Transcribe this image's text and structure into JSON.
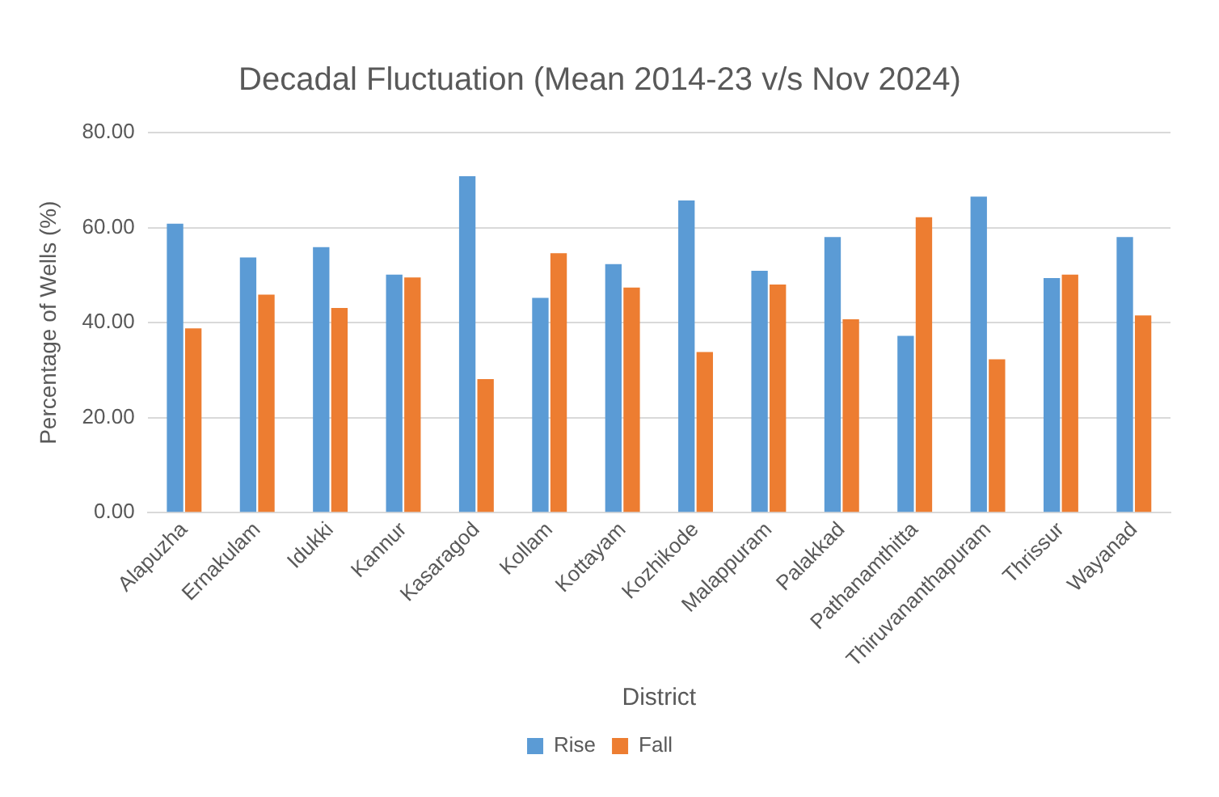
{
  "chart_data": {
    "type": "bar",
    "title": "Decadal Fluctuation (Mean 2014-23 v/s Nov 2024)",
    "xlabel": "District",
    "ylabel": "Percentage of Wells (%)",
    "categories": [
      "Alapuzha",
      "Ernakulam",
      "Idukki",
      "Kannur",
      "Kasaragod",
      "Kollam",
      "Kottayam",
      "Kozhikode",
      "Malappuram",
      "Palakkad",
      "Pathanamthitta",
      "Thiruvananthapuram",
      "Thrissur",
      "Wayanad"
    ],
    "series": [
      {
        "name": "Rise",
        "color": "#5b9bd5",
        "values": [
          60.8,
          53.7,
          55.9,
          50.1,
          70.8,
          45.2,
          52.3,
          65.7,
          50.9,
          58.0,
          37.2,
          66.5,
          49.4,
          58.0
        ]
      },
      {
        "name": "Fall",
        "color": "#ed7d31",
        "values": [
          38.8,
          45.9,
          43.1,
          49.5,
          28.1,
          54.6,
          47.4,
          33.8,
          48.0,
          40.7,
          62.2,
          32.3,
          50.1,
          41.5
        ]
      }
    ],
    "ylim": [
      0,
      80
    ],
    "yticks": [
      {
        "value": 0,
        "label": "0.00"
      },
      {
        "value": 20,
        "label": "20.00"
      },
      {
        "value": 40,
        "label": "40.00"
      },
      {
        "value": 60,
        "label": "60.00"
      },
      {
        "value": 80,
        "label": "80.00"
      }
    ],
    "grid": "y",
    "legend": "bottom"
  }
}
